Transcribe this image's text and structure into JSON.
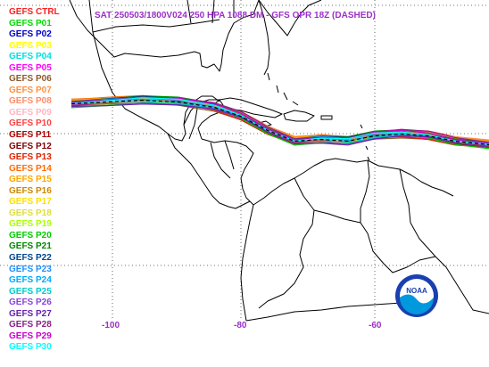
{
  "title": "SAT 250503/1800V024  250 HPA 1088 DM - GFS OPR 18Z (DASHED)",
  "title_color": "#9b30c8",
  "members": [
    {
      "label": "GEFS CTRL",
      "color": "#ff2020"
    },
    {
      "label": "GEFS P01",
      "color": "#00dd00"
    },
    {
      "label": "GEFS P02",
      "color": "#0000cc"
    },
    {
      "label": "GEFS P03",
      "color": "#ffff00"
    },
    {
      "label": "GEFS P04",
      "color": "#00e0e0"
    },
    {
      "label": "GEFS P05",
      "color": "#ff00ff"
    },
    {
      "label": "GEFS P06",
      "color": "#8b5a2b"
    },
    {
      "label": "GEFS P07",
      "color": "#ff9040"
    },
    {
      "label": "GEFS P08",
      "color": "#ff8c69"
    },
    {
      "label": "GEFS P09",
      "color": "#ffb6c1"
    },
    {
      "label": "GEFS P10",
      "color": "#ff4040"
    },
    {
      "label": "GEFS P11",
      "color": "#b00000"
    },
    {
      "label": "GEFS P12",
      "color": "#800000"
    },
    {
      "label": "GEFS P13",
      "color": "#dd2200"
    },
    {
      "label": "GEFS P14",
      "color": "#ff6a00"
    },
    {
      "label": "GEFS P15",
      "color": "#ffa500"
    },
    {
      "label": "GEFS P16",
      "color": "#cc8800"
    },
    {
      "label": "GEFS P17",
      "color": "#ffe000"
    },
    {
      "label": "GEFS P18",
      "color": "#dddd44"
    },
    {
      "label": "GEFS P19",
      "color": "#aaff00"
    },
    {
      "label": "GEFS P20",
      "color": "#00cc00"
    },
    {
      "label": "GEFS P21",
      "color": "#008800"
    },
    {
      "label": "GEFS P22",
      "color": "#004488"
    },
    {
      "label": "GEFS P23",
      "color": "#1e90ff"
    },
    {
      "label": "GEFS P24",
      "color": "#00aaff"
    },
    {
      "label": "GEFS P25",
      "color": "#00cccc"
    },
    {
      "label": "GEFS P26",
      "color": "#8844dd"
    },
    {
      "label": "GEFS P27",
      "color": "#6622aa"
    },
    {
      "label": "GEFS P28",
      "color": "#882288"
    },
    {
      "label": "GEFS P29",
      "color": "#cc00cc"
    },
    {
      "label": "GEFS P30",
      "color": "#00ffff"
    }
  ],
  "longitude_labels": [
    "-100",
    "-80",
    "-60"
  ],
  "logo": {
    "text": "NOAA",
    "ring_color": "#1a3fb0",
    "fill_color": "#0099dd"
  }
}
